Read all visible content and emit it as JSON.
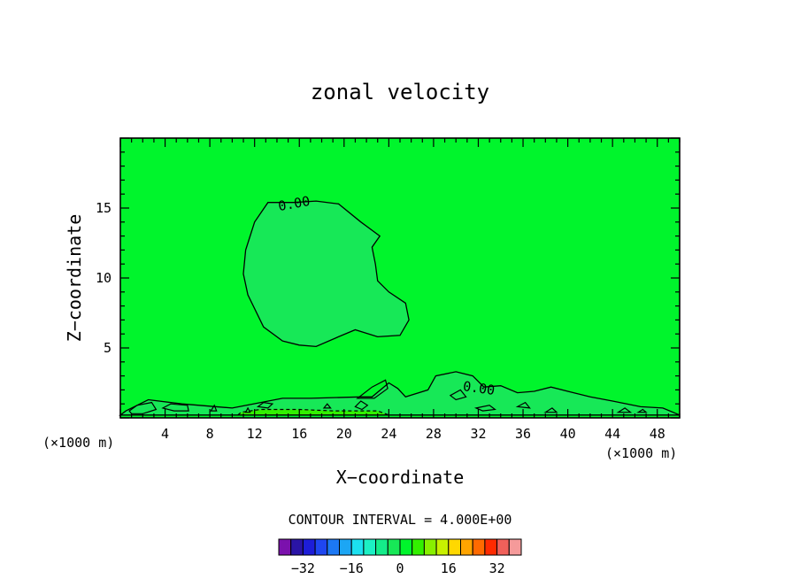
{
  "chart_data": {
    "type": "contour",
    "title": "zonal velocity",
    "xlabel": "X−coordinate",
    "ylabel": "Z−coordinate",
    "x_unit": "(×1000 m)",
    "xlim": [
      0,
      50
    ],
    "ylim": [
      0,
      20
    ],
    "x_ticks": [
      4,
      8,
      12,
      16,
      20,
      24,
      28,
      32,
      36,
      40,
      44,
      48
    ],
    "y_ticks": [
      5,
      10,
      15
    ],
    "contour_interval_text": "CONTOUR INTERVAL = 4.000E+00",
    "contour_labels": [
      "0.00",
      "0.00"
    ],
    "colorbar": {
      "levels": [
        -36,
        -32,
        -28,
        -24,
        -20,
        -16,
        -12,
        -8,
        -4,
        0,
        4,
        8,
        12,
        16,
        20,
        24,
        28,
        32,
        36
      ],
      "colors": [
        "#7b11ad",
        "#2a14a6",
        "#1d1dd8",
        "#1f46f0",
        "#1c78f4",
        "#1ca6f4",
        "#1ce0f0",
        "#1cf0c4",
        "#14ec8a",
        "#17e857",
        "#00f52c",
        "#33f000",
        "#88f000",
        "#c8f000",
        "#ffd800",
        "#ffa400",
        "#ff6a00",
        "#ff2a00",
        "#f0605a",
        "#f59a9a"
      ],
      "tick_labels": [
        "−32",
        "−16",
        "0",
        "16",
        "32"
      ],
      "tick_values": [
        -32,
        -16,
        0,
        16,
        32
      ]
    },
    "background_color": "#00f52c",
    "regions": [
      {
        "name": "interior-negative-region",
        "level": "-4 to 0",
        "color": "#17e857",
        "boundary": [
          [
            13.2,
            15.4
          ],
          [
            15.5,
            15.4
          ],
          [
            17.5,
            15.5
          ],
          [
            19.5,
            15.3
          ],
          [
            21.5,
            14.0
          ],
          [
            23.2,
            13.0
          ],
          [
            22.5,
            12.2
          ],
          [
            22.8,
            11.0
          ],
          [
            23.0,
            9.8
          ],
          [
            24.0,
            9.0
          ],
          [
            25.5,
            8.2
          ],
          [
            25.8,
            7.0
          ],
          [
            25.0,
            5.9
          ],
          [
            23.0,
            5.8
          ],
          [
            21.0,
            6.3
          ],
          [
            19.5,
            5.8
          ],
          [
            17.5,
            5.1
          ],
          [
            16.0,
            5.2
          ],
          [
            14.5,
            5.5
          ],
          [
            12.8,
            6.5
          ],
          [
            11.4,
            8.8
          ],
          [
            11.0,
            10.3
          ],
          [
            11.2,
            12.0
          ],
          [
            12.0,
            14.0
          ]
        ]
      },
      {
        "name": "near-surface-negative-region",
        "level": "-4 to 0",
        "color": "#17e857",
        "boundary": [
          [
            0.5,
            0.5
          ],
          [
            2.5,
            1.3
          ],
          [
            5.5,
            1.0
          ],
          [
            10.0,
            0.7
          ],
          [
            14.5,
            1.4
          ],
          [
            17.0,
            1.4
          ],
          [
            21.5,
            1.5
          ],
          [
            22.5,
            1.5
          ],
          [
            24.0,
            2.5
          ],
          [
            24.8,
            2.1
          ],
          [
            25.5,
            1.5
          ],
          [
            27.5,
            2.0
          ],
          [
            28.2,
            3.0
          ],
          [
            30.0,
            3.3
          ],
          [
            31.5,
            3.0
          ],
          [
            32.5,
            2.2
          ],
          [
            34.0,
            2.3
          ],
          [
            35.5,
            1.8
          ],
          [
            37.0,
            1.9
          ],
          [
            38.5,
            2.2
          ],
          [
            40.0,
            1.9
          ],
          [
            42.0,
            1.5
          ],
          [
            44.0,
            1.2
          ],
          [
            46.5,
            0.8
          ],
          [
            48.5,
            0.7
          ],
          [
            50.0,
            0.2
          ],
          [
            0.0,
            0.2
          ]
        ]
      },
      {
        "name": "near-surface-positive-region",
        "level": "0 to 4",
        "color": "#33f000",
        "boundary": [
          [
            10.5,
            0.2
          ],
          [
            10.8,
            0.4
          ],
          [
            12.5,
            0.6
          ],
          [
            16.0,
            0.6
          ],
          [
            19.0,
            0.5
          ],
          [
            21.0,
            0.5
          ],
          [
            23.0,
            0.5
          ],
          [
            24.0,
            0.2
          ]
        ]
      }
    ]
  }
}
